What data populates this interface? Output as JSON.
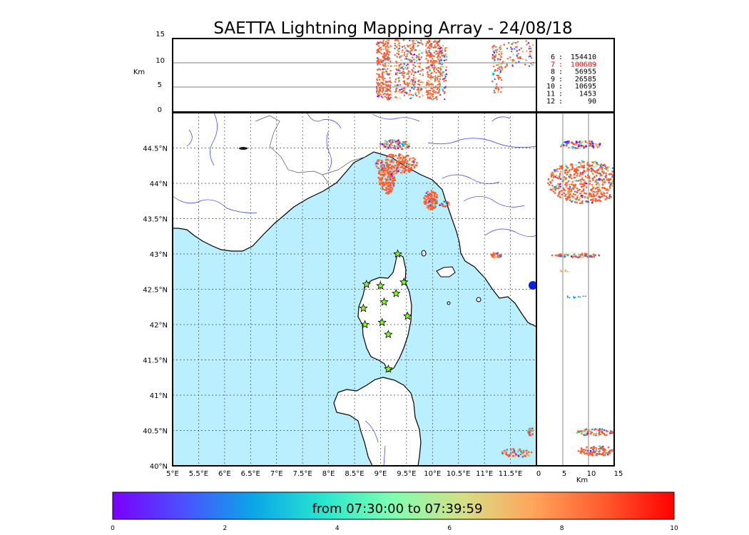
{
  "title": "SAETTA Lightning Mapping Array - 24/08/18",
  "colorbar": {
    "caption": "from 07:30:00 to 07:39:59",
    "ticks": [
      "0",
      "2",
      "4",
      "6",
      "8",
      "10"
    ],
    "stops": [
      "#7b00ff",
      "#4b50ff",
      "#0aa6e8",
      "#28e6d0",
      "#80ffb0",
      "#d6df86",
      "#ffa45a",
      "#ff5a2e",
      "#ff0000"
    ]
  },
  "colors": {
    "sea": "#b9efff",
    "land": "#ffffff",
    "river": "#3333ff",
    "station": "#88ff22",
    "highlight_stat": "#ff0000"
  },
  "altitude_panel": {
    "ylabel": "Km",
    "yticks": [
      "15",
      "10",
      "5",
      "0"
    ]
  },
  "side_panel": {
    "xlabel": "Km",
    "xticks": [
      "0",
      "5",
      "10",
      "15"
    ]
  },
  "map": {
    "xticks": [
      "5°E",
      "5.5°E",
      "6°E",
      "6.5°E",
      "7°E",
      "7.5°E",
      "8°E",
      "8.5°E",
      "9°E",
      "9.5°E",
      "10°E",
      "10.5°E",
      "11°E",
      "11.5°E"
    ],
    "yticks": [
      "44.5°N",
      "44°N",
      "43.5°N",
      "43°N",
      "42.5°N",
      "42°N",
      "41.5°N",
      "41°N",
      "40.5°N",
      "40°N"
    ],
    "lon_range": [
      5,
      12
    ],
    "lat_range": [
      40,
      45
    ]
  },
  "stats": [
    {
      "level": "6",
      "count": "154410"
    },
    {
      "level": "7",
      "count": "100609"
    },
    {
      "level": "8",
      "count": "56955"
    },
    {
      "level": "9",
      "count": "26585"
    },
    {
      "level": "10",
      "count": "10695"
    },
    {
      "level": "11",
      "count": "1453"
    },
    {
      "level": "12",
      "count": "90"
    }
  ],
  "stations": [
    [
      9.33,
      43.0
    ],
    [
      8.73,
      42.57
    ],
    [
      9.0,
      42.55
    ],
    [
      9.45,
      42.6
    ],
    [
      9.3,
      42.44
    ],
    [
      9.07,
      42.32
    ],
    [
      8.67,
      42.23
    ],
    [
      9.52,
      42.12
    ],
    [
      9.03,
      42.03
    ],
    [
      8.7,
      42.0
    ],
    [
      9.15,
      41.86
    ],
    [
      9.15,
      41.37
    ]
  ]
}
